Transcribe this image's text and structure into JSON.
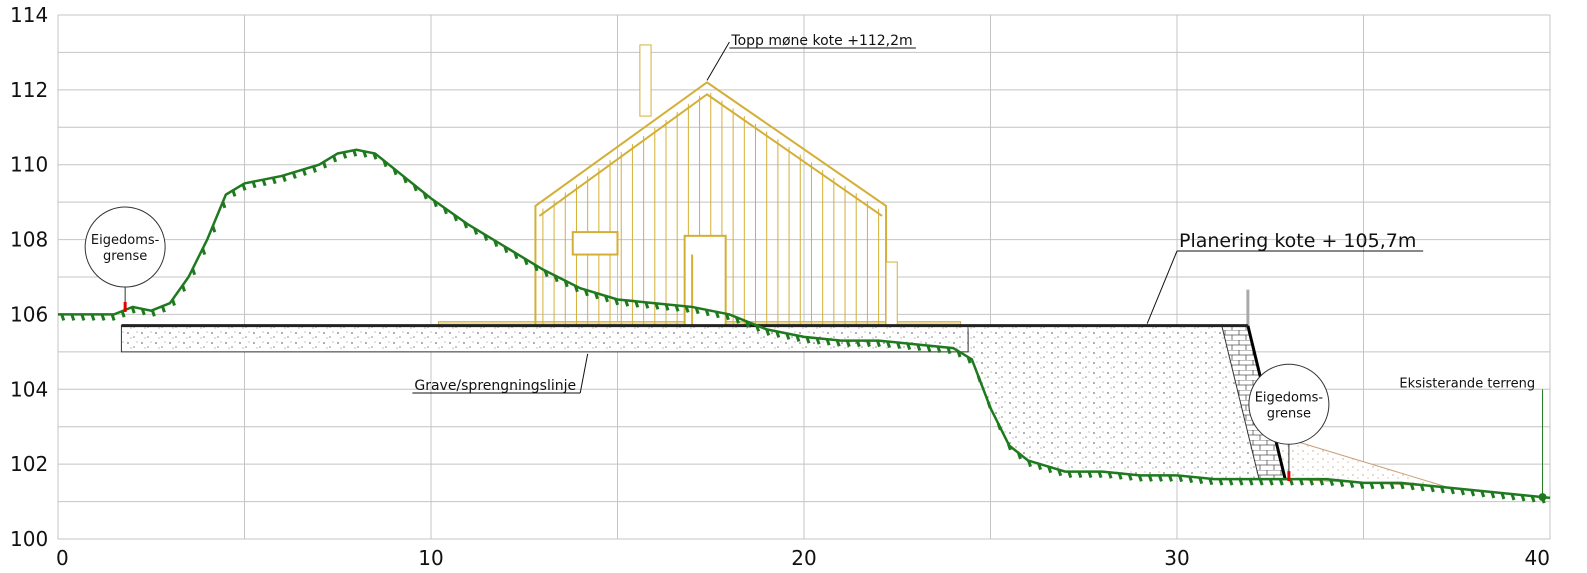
{
  "chart_data": {
    "type": "diagram",
    "x_ticks": [
      "0",
      "10",
      "20",
      "30",
      "40"
    ],
    "y_ticks": [
      "100",
      "102",
      "104",
      "106",
      "108",
      "110",
      "112",
      "114"
    ],
    "xlim": [
      0,
      40
    ],
    "ylim": [
      100,
      114
    ],
    "grid": true,
    "existing_terrain": {
      "label": "Eksisterande terreng",
      "color": "#1f7a1f",
      "points": [
        [
          0,
          106
        ],
        [
          1.5,
          106
        ],
        [
          2,
          106.2
        ],
        [
          2.5,
          106.1
        ],
        [
          3,
          106.3
        ],
        [
          3.5,
          107
        ],
        [
          4,
          108
        ],
        [
          4.5,
          109.2
        ],
        [
          5,
          109.5
        ],
        [
          6,
          109.7
        ],
        [
          7,
          110
        ],
        [
          7.5,
          110.3
        ],
        [
          8,
          110.4
        ],
        [
          8.5,
          110.3
        ],
        [
          9,
          109.9
        ],
        [
          10,
          109.1
        ],
        [
          11,
          108.4
        ],
        [
          12,
          107.8
        ],
        [
          13,
          107.2
        ],
        [
          14,
          106.7
        ],
        [
          15,
          106.4
        ],
        [
          16,
          106.3
        ],
        [
          17,
          106.2
        ],
        [
          18,
          106
        ],
        [
          19,
          105.6
        ],
        [
          20,
          105.4
        ],
        [
          21,
          105.3
        ],
        [
          22,
          105.3
        ],
        [
          23,
          105.2
        ],
        [
          24,
          105.1
        ],
        [
          24.5,
          104.8
        ],
        [
          25,
          103.5
        ],
        [
          25.5,
          102.5
        ],
        [
          26,
          102.1
        ],
        [
          27,
          101.8
        ],
        [
          28,
          101.8
        ],
        [
          29,
          101.7
        ],
        [
          30,
          101.7
        ],
        [
          31,
          101.6
        ],
        [
          32,
          101.6
        ],
        [
          33,
          101.6
        ],
        [
          34,
          101.6
        ],
        [
          35,
          101.5
        ],
        [
          36,
          101.5
        ],
        [
          37,
          101.4
        ],
        [
          38,
          101.3
        ],
        [
          39,
          101.2
        ],
        [
          40,
          101.1
        ]
      ]
    },
    "leveling": {
      "label": "Planering kote + 105,7m",
      "elevation": 105.7,
      "x_start": 1.7,
      "x_end": 31.9
    },
    "excavation_line": {
      "label": "Grave/sprengningslinje",
      "elevation": 105.0
    },
    "ridge": {
      "label": "Topp møne kote +112,2m",
      "elevation": 112.2,
      "x": 17.4
    },
    "house": {
      "color": "#d4af37",
      "x_left": 12.8,
      "x_right": 22.2,
      "floor": 105.7,
      "eave": 108.9,
      "ridge": 112.2
    },
    "property_boundaries": [
      {
        "label_line1": "Eigedoms-",
        "label_line2": "grense",
        "x": 1.8
      },
      {
        "label_line1": "Eigedoms-",
        "label_line2": "grense",
        "x": 33.0
      }
    ],
    "retaining_wall": {
      "top_elevation": 105.7,
      "bottom_elevation": 101.6,
      "x_top_left": 31.2,
      "x_top_right": 31.9,
      "x_bottom_left": 32.2,
      "x_bottom_right": 32.9
    }
  }
}
